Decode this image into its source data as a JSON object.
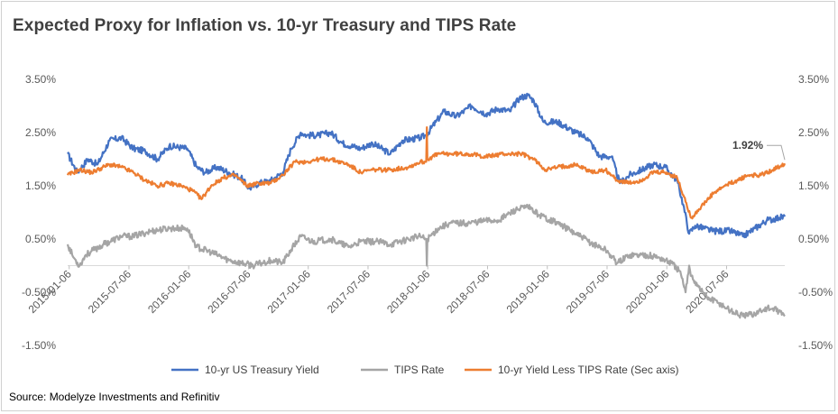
{
  "title": "Expected Proxy for Inflation vs. 10-yr Treasury and TIPS Rate",
  "source": "Source: Modelyze Investments and Refinitiv",
  "chart_data": {
    "type": "line",
    "title": "Expected Proxy for Inflation vs. 10-yr Treasury and TIPS Rate",
    "x_ticks": [
      "2015-01-06",
      "2015-07-06",
      "2016-01-06",
      "2016-07-06",
      "2017-01-06",
      "2017-07-06",
      "2018-01-06",
      "2018-07-06",
      "2019-01-06",
      "2019-07-06",
      "2020-01-06",
      "2020-07-06"
    ],
    "x_range": [
      "2015-01-02",
      "2020-12-31"
    ],
    "y_left": {
      "min": -1.5,
      "max": 3.5,
      "ticks": [
        "-1.50%",
        "-0.50%",
        "0.50%",
        "1.50%",
        "2.50%",
        "3.50%"
      ]
    },
    "y_right": {
      "min": -1.5,
      "max": 3.5,
      "ticks": [
        "-1.50%",
        "-0.50%",
        "0.50%",
        "1.50%",
        "2.50%",
        "3.50%"
      ]
    },
    "annotation": {
      "label": "1.92%",
      "series": "10-yr Yield Less TIPS Rate (Sec axis)",
      "value": 1.92
    },
    "series": [
      {
        "name": "10-yr US Treasury Yield",
        "color": "#4472C4",
        "axis": "left",
        "points": [
          [
            2015.0,
            2.1
          ],
          [
            2015.08,
            1.75
          ],
          [
            2015.17,
            2.0
          ],
          [
            2015.25,
            1.9
          ],
          [
            2015.35,
            2.35
          ],
          [
            2015.45,
            2.4
          ],
          [
            2015.55,
            2.2
          ],
          [
            2015.65,
            2.15
          ],
          [
            2015.75,
            2.0
          ],
          [
            2015.85,
            2.25
          ],
          [
            2016.0,
            2.2
          ],
          [
            2016.08,
            1.85
          ],
          [
            2016.15,
            1.75
          ],
          [
            2016.25,
            1.85
          ],
          [
            2016.35,
            1.75
          ],
          [
            2016.45,
            1.65
          ],
          [
            2016.52,
            1.45
          ],
          [
            2016.6,
            1.55
          ],
          [
            2016.7,
            1.6
          ],
          [
            2016.8,
            1.75
          ],
          [
            2016.87,
            2.2
          ],
          [
            2016.95,
            2.5
          ],
          [
            2017.0,
            2.45
          ],
          [
            2017.1,
            2.45
          ],
          [
            2017.2,
            2.5
          ],
          [
            2017.3,
            2.3
          ],
          [
            2017.45,
            2.2
          ],
          [
            2017.55,
            2.3
          ],
          [
            2017.7,
            2.1
          ],
          [
            2017.8,
            2.35
          ],
          [
            2017.95,
            2.4
          ],
          [
            2018.0,
            2.45
          ],
          [
            2018.08,
            2.7
          ],
          [
            2018.15,
            2.9
          ],
          [
            2018.25,
            2.8
          ],
          [
            2018.38,
            3.0
          ],
          [
            2018.5,
            2.85
          ],
          [
            2018.6,
            2.95
          ],
          [
            2018.7,
            2.9
          ],
          [
            2018.78,
            3.15
          ],
          [
            2018.85,
            3.2
          ],
          [
            2018.9,
            3.1
          ],
          [
            2018.98,
            2.7
          ],
          [
            2019.1,
            2.7
          ],
          [
            2019.25,
            2.5
          ],
          [
            2019.35,
            2.4
          ],
          [
            2019.45,
            2.05
          ],
          [
            2019.55,
            2.05
          ],
          [
            2019.62,
            1.55
          ],
          [
            2019.7,
            1.7
          ],
          [
            2019.8,
            1.8
          ],
          [
            2019.9,
            1.9
          ],
          [
            2020.0,
            1.85
          ],
          [
            2020.1,
            1.6
          ],
          [
            2020.15,
            1.15
          ],
          [
            2020.2,
            0.6
          ],
          [
            2020.25,
            0.75
          ],
          [
            2020.4,
            0.65
          ],
          [
            2020.55,
            0.65
          ],
          [
            2020.65,
            0.55
          ],
          [
            2020.75,
            0.7
          ],
          [
            2020.85,
            0.85
          ],
          [
            2020.95,
            0.9
          ],
          [
            2021.0,
            0.92
          ]
        ]
      },
      {
        "name": "TIPS Rate",
        "color": "#A5A5A5",
        "axis": "left",
        "points": [
          [
            2015.0,
            0.4
          ],
          [
            2015.05,
            0.15
          ],
          [
            2015.1,
            0.0
          ],
          [
            2015.15,
            0.2
          ],
          [
            2015.3,
            0.4
          ],
          [
            2015.45,
            0.55
          ],
          [
            2015.55,
            0.55
          ],
          [
            2015.7,
            0.65
          ],
          [
            2015.85,
            0.7
          ],
          [
            2016.0,
            0.7
          ],
          [
            2016.08,
            0.35
          ],
          [
            2016.2,
            0.25
          ],
          [
            2016.35,
            0.1
          ],
          [
            2016.45,
            0.05
          ],
          [
            2016.55,
            0.0
          ],
          [
            2016.7,
            0.1
          ],
          [
            2016.8,
            0.05
          ],
          [
            2016.87,
            0.3
          ],
          [
            2016.95,
            0.55
          ],
          [
            2017.05,
            0.45
          ],
          [
            2017.2,
            0.5
          ],
          [
            2017.35,
            0.35
          ],
          [
            2017.45,
            0.45
          ],
          [
            2017.6,
            0.45
          ],
          [
            2017.7,
            0.4
          ],
          [
            2017.85,
            0.5
          ],
          [
            2017.95,
            0.55
          ],
          [
            2018.0,
            0.5
          ],
          [
            2018.005,
            0.0
          ],
          [
            2018.01,
            0.5
          ],
          [
            2018.1,
            0.7
          ],
          [
            2018.2,
            0.8
          ],
          [
            2018.35,
            0.8
          ],
          [
            2018.5,
            0.85
          ],
          [
            2018.6,
            0.85
          ],
          [
            2018.75,
            1.05
          ],
          [
            2018.85,
            1.1
          ],
          [
            2018.95,
            0.95
          ],
          [
            2019.1,
            0.8
          ],
          [
            2019.25,
            0.6
          ],
          [
            2019.4,
            0.4
          ],
          [
            2019.5,
            0.3
          ],
          [
            2019.6,
            0.05
          ],
          [
            2019.7,
            0.2
          ],
          [
            2019.85,
            0.2
          ],
          [
            2019.95,
            0.15
          ],
          [
            2020.05,
            0.05
          ],
          [
            2020.12,
            -0.1
          ],
          [
            2020.17,
            -0.5
          ],
          [
            2020.2,
            0.0
          ],
          [
            2020.22,
            -0.2
          ],
          [
            2020.28,
            -0.4
          ],
          [
            2020.35,
            -0.6
          ],
          [
            2020.45,
            -0.7
          ],
          [
            2020.55,
            -0.85
          ],
          [
            2020.65,
            -0.95
          ],
          [
            2020.75,
            -0.9
          ],
          [
            2020.85,
            -0.8
          ],
          [
            2020.95,
            -0.85
          ],
          [
            2021.0,
            -0.95
          ]
        ]
      },
      {
        "name": "10-yr Yield Less TIPS Rate (Sec axis)",
        "color": "#ED7D31",
        "axis": "right",
        "points": [
          [
            2015.0,
            1.7
          ],
          [
            2015.1,
            1.8
          ],
          [
            2015.2,
            1.75
          ],
          [
            2015.35,
            1.9
          ],
          [
            2015.45,
            1.85
          ],
          [
            2015.55,
            1.75
          ],
          [
            2015.65,
            1.6
          ],
          [
            2015.75,
            1.5
          ],
          [
            2015.85,
            1.55
          ],
          [
            2015.95,
            1.5
          ],
          [
            2016.05,
            1.4
          ],
          [
            2016.12,
            1.25
          ],
          [
            2016.2,
            1.5
          ],
          [
            2016.3,
            1.65
          ],
          [
            2016.4,
            1.7
          ],
          [
            2016.5,
            1.5
          ],
          [
            2016.6,
            1.55
          ],
          [
            2016.7,
            1.55
          ],
          [
            2016.8,
            1.7
          ],
          [
            2016.9,
            1.95
          ],
          [
            2017.0,
            1.95
          ],
          [
            2017.1,
            2.0
          ],
          [
            2017.2,
            2.0
          ],
          [
            2017.35,
            1.9
          ],
          [
            2017.45,
            1.75
          ],
          [
            2017.55,
            1.8
          ],
          [
            2017.7,
            1.8
          ],
          [
            2017.85,
            1.85
          ],
          [
            2017.95,
            1.95
          ],
          [
            2018.0,
            1.95
          ],
          [
            2018.005,
            2.6
          ],
          [
            2018.01,
            2.0
          ],
          [
            2018.1,
            2.1
          ],
          [
            2018.2,
            2.1
          ],
          [
            2018.35,
            2.1
          ],
          [
            2018.5,
            2.05
          ],
          [
            2018.65,
            2.1
          ],
          [
            2018.8,
            2.1
          ],
          [
            2018.9,
            2.0
          ],
          [
            2019.0,
            1.8
          ],
          [
            2019.1,
            1.85
          ],
          [
            2019.25,
            1.9
          ],
          [
            2019.4,
            1.75
          ],
          [
            2019.5,
            1.8
          ],
          [
            2019.6,
            1.6
          ],
          [
            2019.7,
            1.55
          ],
          [
            2019.8,
            1.6
          ],
          [
            2019.9,
            1.75
          ],
          [
            2020.0,
            1.75
          ],
          [
            2020.1,
            1.65
          ],
          [
            2020.17,
            1.2
          ],
          [
            2020.22,
            0.9
          ],
          [
            2020.3,
            1.1
          ],
          [
            2020.4,
            1.35
          ],
          [
            2020.5,
            1.5
          ],
          [
            2020.6,
            1.6
          ],
          [
            2020.7,
            1.7
          ],
          [
            2020.8,
            1.7
          ],
          [
            2020.9,
            1.8
          ],
          [
            2021.0,
            1.92
          ]
        ]
      }
    ]
  }
}
